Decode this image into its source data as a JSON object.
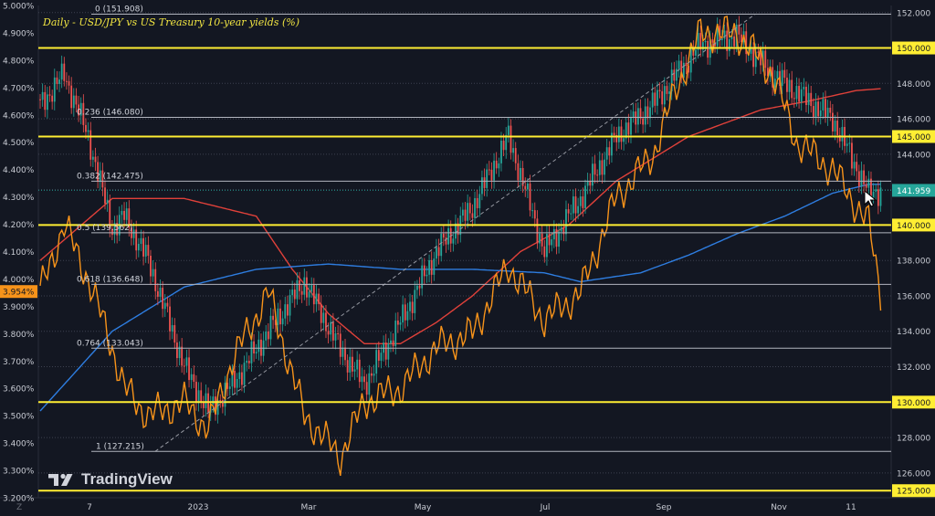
{
  "title": "Daily - USD/JPY vs US Treasury 10-year yields (%)",
  "watermark": "TradingView",
  "colors": {
    "background": "#131722",
    "bull": "#26a69a",
    "bear": "#ef5350",
    "yield_line": "#f7931a",
    "ma_red": "#e0413a",
    "ma_blue": "#2e7de0",
    "level_line": "#ffee33"
  },
  "chart_data": {
    "type": "line",
    "x_ticks": [
      "7",
      "2023",
      "Mar",
      "May",
      "Jul",
      "Sep",
      "Nov",
      "11"
    ],
    "left_axis": {
      "label": "",
      "range": [
        3.2,
        5.0
      ],
      "ticks": [
        "5.000%",
        "4.900%",
        "4.800%",
        "4.700%",
        "4.600%",
        "4.500%",
        "4.400%",
        "4.300%",
        "4.200%",
        "4.100%",
        "4.000%",
        "3.900%",
        "3.800%",
        "3.700%",
        "3.600%",
        "3.500%",
        "3.400%",
        "3.300%",
        "3.200%"
      ],
      "current_value_label": "3.954%"
    },
    "right_axis": {
      "label": "",
      "range": [
        124.6,
        152.4
      ],
      "ticks": [
        "152.000",
        "150.000",
        "148.000",
        "146.000",
        "145.000",
        "144.000",
        "142.000",
        "140.000",
        "138.000",
        "136.000",
        "134.000",
        "132.000",
        "130.000",
        "128.000",
        "126.000",
        "125.000"
      ],
      "highlighted_ticks": [
        "150.000",
        "145.000",
        "140.000",
        "130.000",
        "125.000"
      ],
      "current_price_label": "141.959"
    },
    "horizontal_levels": [
      150.0,
      145.0,
      140.0,
      130.0,
      125.0
    ],
    "fibonacci": [
      {
        "ratio": "0",
        "price": 151.908,
        "label": "0 (151.908)"
      },
      {
        "ratio": "0.236",
        "price": 146.08,
        "label": "0.236 (146.080)"
      },
      {
        "ratio": "0.382",
        "price": 142.475,
        "label": "0.382 (142.475)"
      },
      {
        "ratio": "0.5",
        "price": 139.562,
        "label": "0.5 (139.562)"
      },
      {
        "ratio": "0.618",
        "price": 136.648,
        "label": "0.618 (136.648)"
      },
      {
        "ratio": "0.764",
        "price": 133.043,
        "label": "0.764 (133.043)"
      },
      {
        "ratio": "1",
        "price": 127.215,
        "label": "1 (127.215)"
      }
    ],
    "series": [
      {
        "id": "usdjpy",
        "type": "candlestick",
        "axis": "right",
        "days": [
          0,
          10,
          20,
          30,
          35,
          45,
          60,
          70,
          80,
          95,
          110,
          125,
          135,
          150,
          165,
          180,
          195,
          210,
          225,
          240,
          255,
          265,
          275,
          290,
          305,
          315,
          330,
          345,
          350
        ],
        "close": [
          146.8,
          148.5,
          145.0,
          139.8,
          140.5,
          138.0,
          132.0,
          129.5,
          131.0,
          134.0,
          136.8,
          133.0,
          131.0,
          134.5,
          138.5,
          141.0,
          145.0,
          138.5,
          141.5,
          145.0,
          146.8,
          148.5,
          150.2,
          150.7,
          148.5,
          147.5,
          146.0,
          141.8,
          141.96
        ]
      },
      {
        "id": "us10y",
        "type": "line",
        "axis": "left",
        "days": [
          0,
          10,
          20,
          30,
          35,
          45,
          60,
          70,
          80,
          95,
          110,
          125,
          135,
          150,
          165,
          180,
          195,
          210,
          225,
          240,
          255,
          265,
          275,
          290,
          305,
          315,
          330,
          345,
          350
        ],
        "values": [
          3.95,
          4.2,
          4.0,
          3.75,
          3.6,
          3.5,
          3.55,
          3.45,
          3.7,
          3.95,
          3.5,
          3.35,
          3.55,
          3.6,
          3.75,
          3.8,
          4.05,
          3.85,
          3.95,
          4.3,
          4.45,
          4.7,
          4.9,
          4.9,
          4.75,
          4.5,
          4.4,
          4.2,
          3.954
        ]
      },
      {
        "id": "ma_red",
        "type": "line",
        "axis": "right",
        "days": [
          0,
          30,
          60,
          90,
          105,
          120,
          135,
          150,
          165,
          180,
          200,
          220,
          240,
          270,
          300,
          320,
          340,
          350
        ],
        "values": [
          138.0,
          141.5,
          141.5,
          140.5,
          137.5,
          135.0,
          133.3,
          133.3,
          134.5,
          136.0,
          138.5,
          140.0,
          142.5,
          145.0,
          146.5,
          147.0,
          147.6,
          147.7
        ]
      },
      {
        "id": "ma_blue",
        "type": "line",
        "axis": "right",
        "days": [
          0,
          30,
          60,
          90,
          120,
          150,
          180,
          210,
          225,
          250,
          270,
          290,
          310,
          330,
          345,
          350
        ],
        "values": [
          129.5,
          134.0,
          136.5,
          137.5,
          137.8,
          137.5,
          137.5,
          137.3,
          136.8,
          137.3,
          138.3,
          139.5,
          140.5,
          141.8,
          142.3,
          142.3
        ]
      }
    ]
  }
}
